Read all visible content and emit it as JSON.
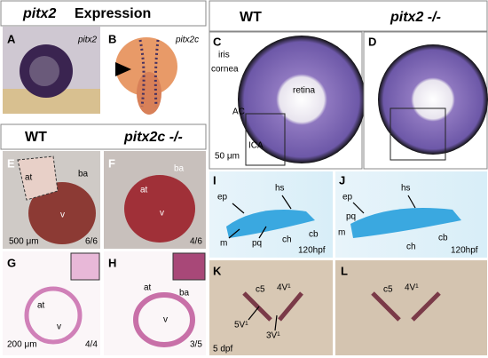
{
  "top_title": {
    "gene": "pitx2",
    "rest": "Expression"
  },
  "eye_header": {
    "wt": "WT",
    "mutant": "pitx2 -/-"
  },
  "heart_header": {
    "wt": "WT",
    "mutant": "pitx2c -/-"
  },
  "panels": [
    {
      "letter": "A",
      "labels": [
        "pitx2"
      ]
    },
    {
      "letter": "B",
      "labels": [
        "pitx2c"
      ]
    },
    {
      "letter": "C",
      "labels": [
        "iris",
        "cornea",
        "retina",
        "AC",
        "ICA",
        "50 μm"
      ]
    },
    {
      "letter": "D"
    },
    {
      "letter": "E",
      "labels": [
        "at",
        "ba",
        "v",
        "500 μm",
        "6/6"
      ]
    },
    {
      "letter": "F",
      "labels": [
        "ba",
        "at",
        "v",
        "4/6"
      ]
    },
    {
      "letter": "G",
      "labels": [
        "at",
        "v",
        "200 μm",
        "4/4"
      ]
    },
    {
      "letter": "H",
      "labels": [
        "at",
        "ba",
        "v",
        "3/5"
      ]
    },
    {
      "letter": "I",
      "labels": [
        "ep",
        "hs",
        "m",
        "pq",
        "ch",
        "cb",
        "120hpf"
      ]
    },
    {
      "letter": "J",
      "labels": [
        "ep",
        "hs",
        "pq",
        "m",
        "ch",
        "cb",
        "120hpf"
      ]
    },
    {
      "letter": "K",
      "labels": [
        "c5",
        "4V¹",
        "5V¹",
        "3V¹",
        "5 dpf"
      ]
    },
    {
      "letter": "L",
      "labels": [
        "c5",
        "4V¹"
      ]
    }
  ]
}
